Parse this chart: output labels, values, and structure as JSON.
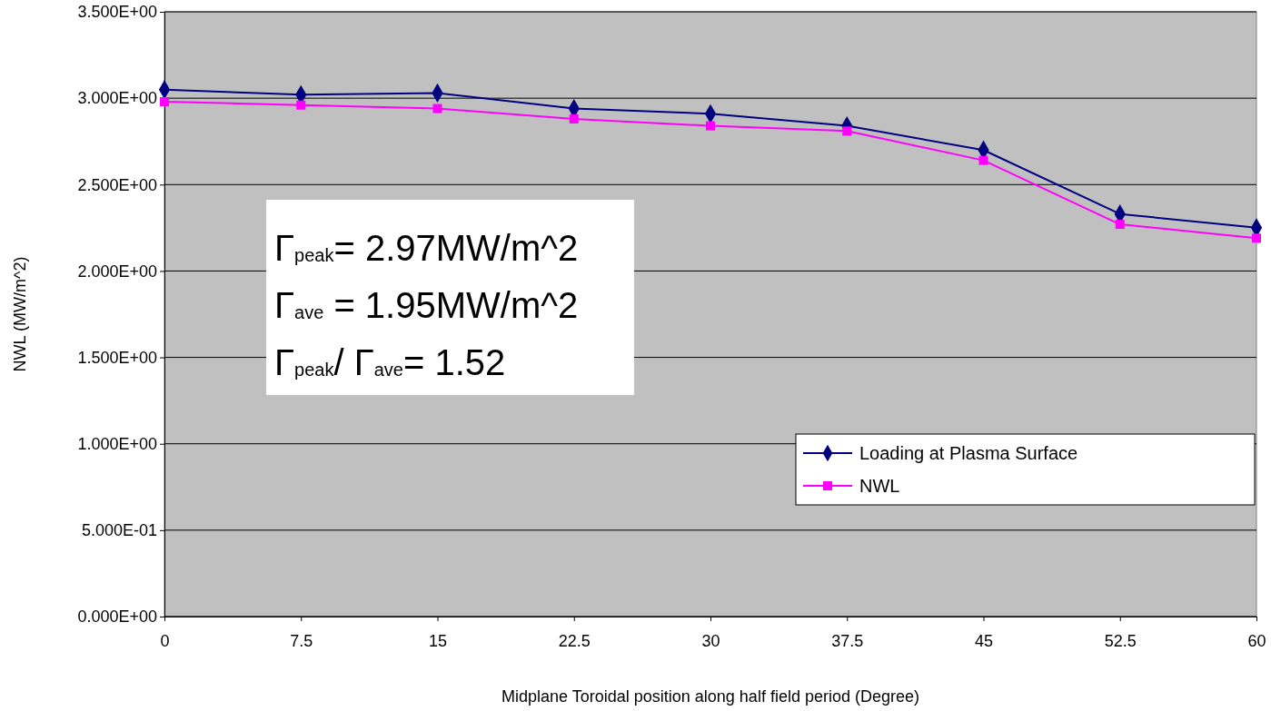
{
  "chart_data": {
    "type": "line",
    "xlabel": "Midplane Toroidal position along half field period (Degree)",
    "ylabel": "NWL (MW/m^2)",
    "x": [
      0,
      7.5,
      15,
      22.5,
      30,
      37.5,
      45,
      52.5,
      60
    ],
    "xlim": [
      0,
      60
    ],
    "xticks": [
      0,
      7.5,
      15,
      22.5,
      30,
      37.5,
      45,
      52.5,
      60
    ],
    "ylim": [
      0,
      3.5
    ],
    "yticks": [
      {
        "value": 0,
        "label": "0.000E+00"
      },
      {
        "value": 0.5,
        "label": "5.000E-01"
      },
      {
        "value": 1,
        "label": "1.000E+00"
      },
      {
        "value": 1.5,
        "label": "1.500E+00"
      },
      {
        "value": 2,
        "label": "2.000E+00"
      },
      {
        "value": 2.5,
        "label": "2.500E+00"
      },
      {
        "value": 3,
        "label": "3.000E+00"
      },
      {
        "value": 3.5,
        "label": "3.500E+00"
      }
    ],
    "grid": "y",
    "legend": "right",
    "series": [
      {
        "name": "Loading at Plasma Surface",
        "color": "#000080",
        "marker": "diamond",
        "values": [
          3.05,
          3.02,
          3.03,
          2.94,
          2.91,
          2.84,
          2.7,
          2.33,
          2.25
        ]
      },
      {
        "name": "NWL",
        "color": "#ff00ff",
        "marker": "square",
        "values": [
          2.98,
          2.96,
          2.94,
          2.88,
          2.84,
          2.81,
          2.64,
          2.27,
          2.19
        ]
      }
    ],
    "annotations": [
      "Γ$_{peak}$= 2.97MW/m^2",
      "Γ$_{ave}$ = 1.95MW/m^2",
      "Γ$_{peak}$/ Γ$_{ave}$= 1.52"
    ]
  }
}
